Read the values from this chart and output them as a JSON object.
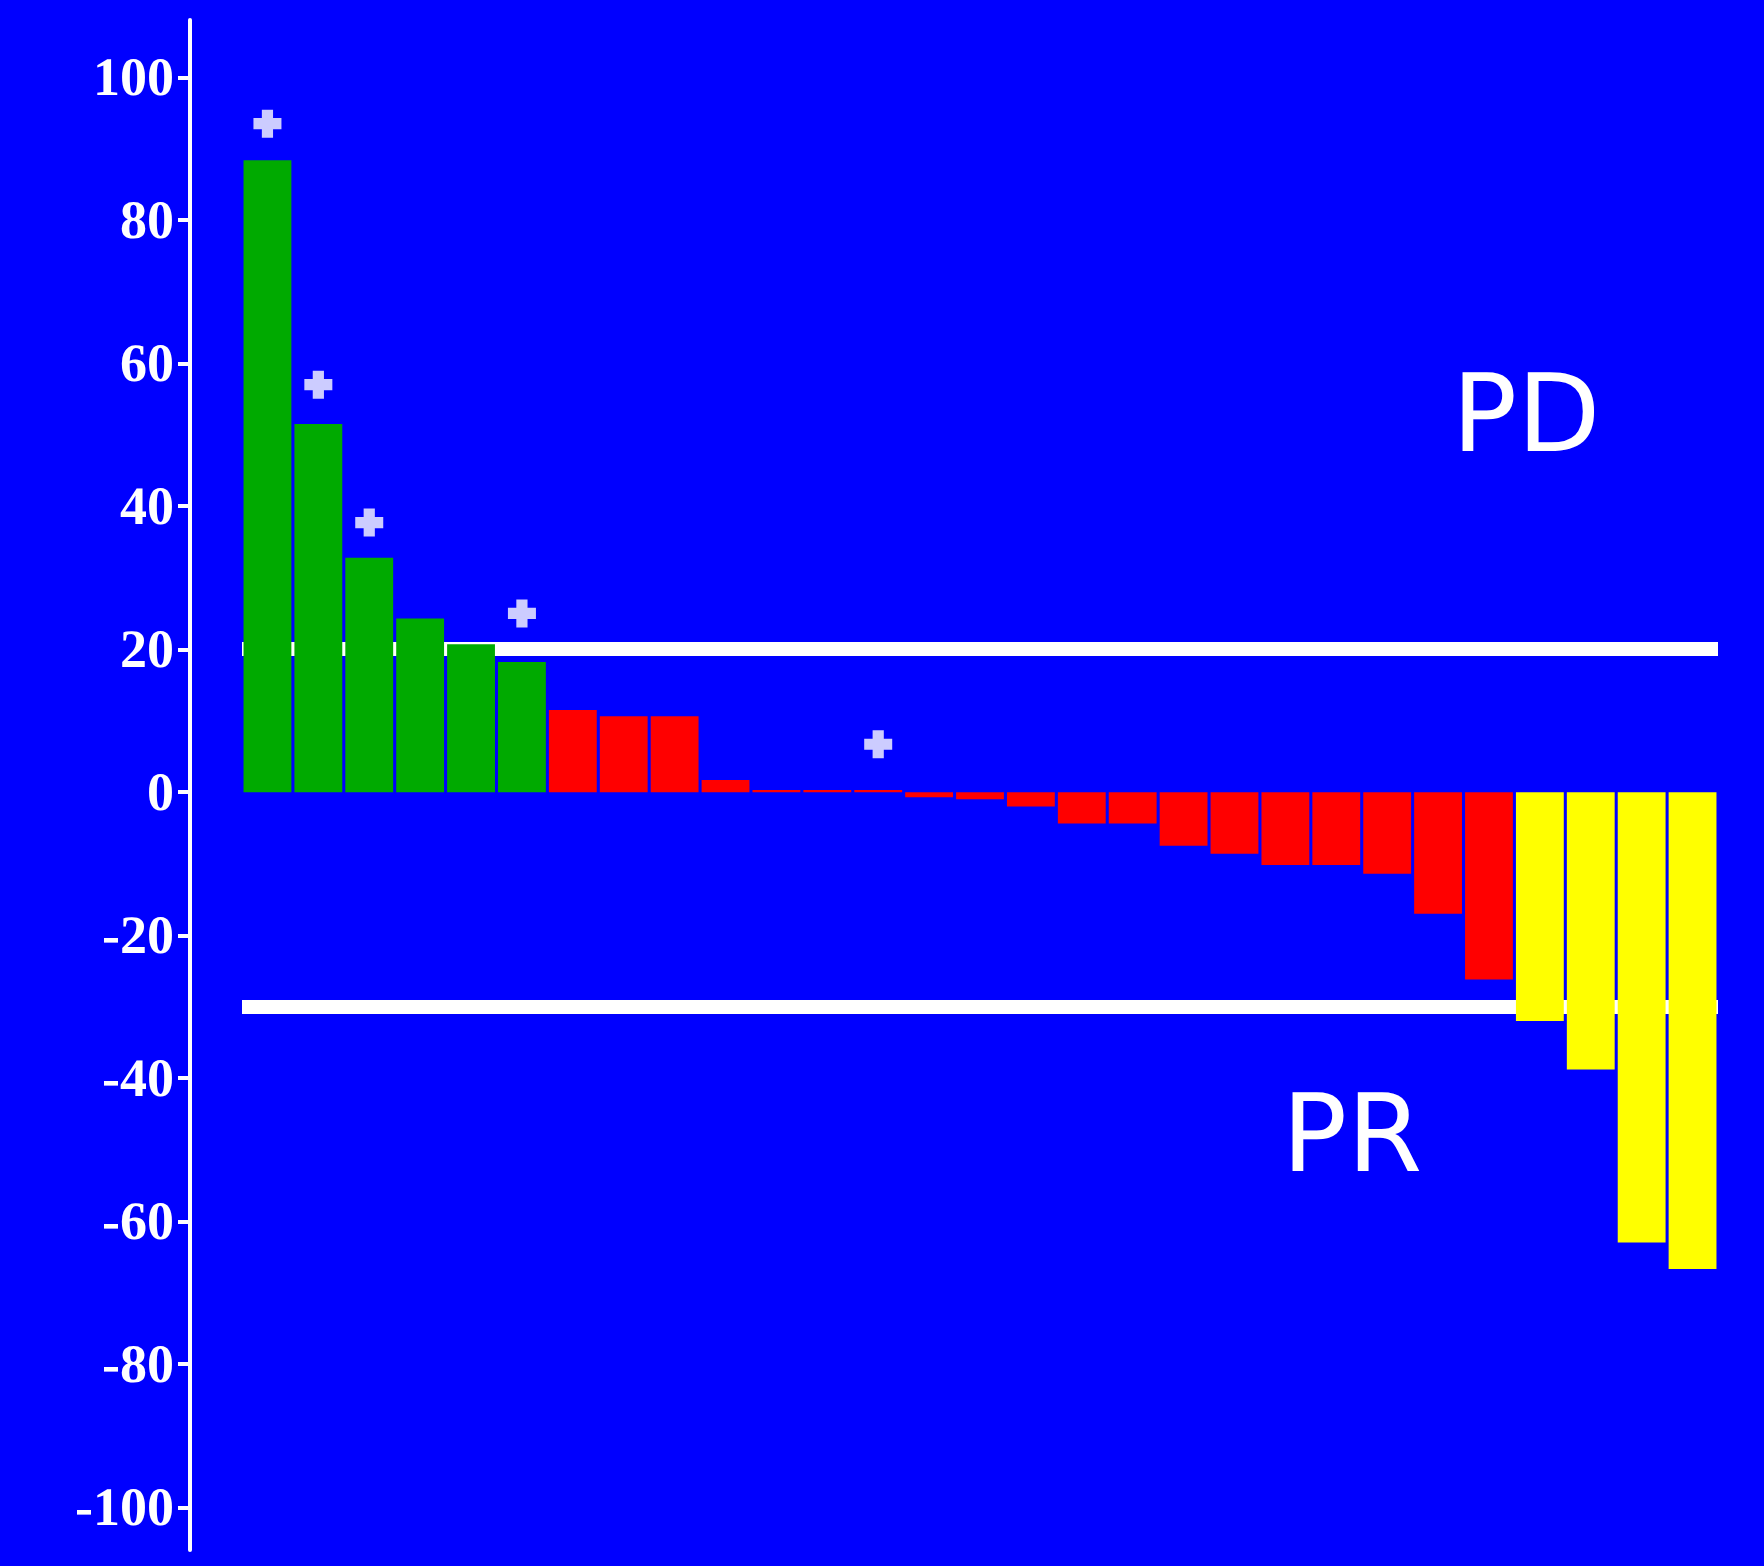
{
  "chart_data": {
    "type": "bar",
    "categories": [
      null,
      null,
      null,
      null,
      null,
      null,
      null,
      null,
      null,
      null,
      null,
      null,
      null,
      null,
      null,
      null,
      null,
      null,
      null,
      null,
      null,
      null,
      null,
      null,
      null,
      null,
      null,
      null,
      null
    ],
    "values": [
      88.4,
      51.5,
      32.8,
      24.3,
      20.7,
      18.2,
      11.5,
      10.6,
      10.6,
      1.7,
      0.3,
      0.3,
      0.3,
      -0.7,
      -1,
      -2,
      -4.4,
      -4.4,
      -7.5,
      -8.6,
      -10.2,
      -10.2,
      -11.4,
      -17,
      -26.2,
      -32,
      -38.8,
      -63,
      -66.7
    ],
    "colors": [
      "#00aa00",
      "#00aa00",
      "#00aa00",
      "#00aa00",
      "#00aa00",
      "#00aa00",
      "#ff0000",
      "#ff0000",
      "#ff0000",
      "#ff0000",
      "#ff0000",
      "#ff0000",
      "#ff0000",
      "#ff0000",
      "#ff0000",
      "#ff0000",
      "#ff0000",
      "#ff0000",
      "#ff0000",
      "#ff0000",
      "#ff0000",
      "#ff0000",
      "#ff0000",
      "#ff0000",
      "#ff0000",
      "#ffff00",
      "#ffff00",
      "#ffff00",
      "#ffff00"
    ],
    "series": [
      {
        "type": "scatter",
        "color": "#ffffff",
        "marker": "cross",
        "values": [
          93.5,
          57,
          37.7,
          null,
          null,
          25,
          null,
          null,
          null,
          null,
          null,
          null,
          6.7,
          null,
          null,
          null,
          null,
          null,
          null,
          null,
          null,
          null,
          null,
          null,
          null,
          null,
          null,
          null,
          null
        ]
      }
    ],
    "ylim": [
      -106,
      108
    ],
    "yticks": [
      -100,
      -80,
      -60,
      -40,
      -20,
      0,
      20,
      40,
      60,
      80,
      100
    ],
    "grid": false,
    "ref_lines": [
      {
        "axis": "y",
        "value": 20,
        "color": "#ffffff"
      },
      {
        "axis": "y",
        "value": -30,
        "color": "#ffffff"
      }
    ],
    "annotations": [
      "PD",
      "PR"
    ]
  }
}
